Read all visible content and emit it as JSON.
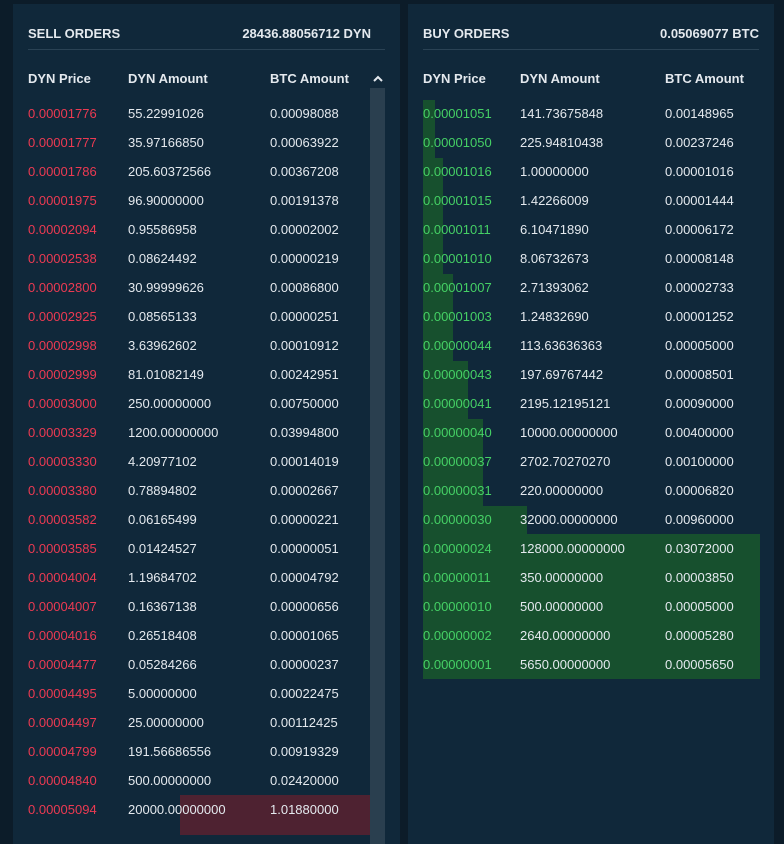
{
  "sell_orders": {
    "title": "SELL ORDERS",
    "total": "28436.88056712 DYN",
    "columns": [
      "DYN Price",
      "DYN Amount",
      "BTC Amount"
    ],
    "rows": [
      [
        "0.00001776",
        "55.22991026",
        "0.00098088"
      ],
      [
        "0.00001777",
        "35.97166850",
        "0.00063922"
      ],
      [
        "0.00001786",
        "205.60372566",
        "0.00367208"
      ],
      [
        "0.00001975",
        "96.90000000",
        "0.00191378"
      ],
      [
        "0.00002094",
        "0.95586958",
        "0.00002002"
      ],
      [
        "0.00002538",
        "0.08624492",
        "0.00000219"
      ],
      [
        "0.00002800",
        "30.99999626",
        "0.00086800"
      ],
      [
        "0.00002925",
        "0.08565133",
        "0.00000251"
      ],
      [
        "0.00002998",
        "3.63962602",
        "0.00010912"
      ],
      [
        "0.00002999",
        "81.01082149",
        "0.00242951"
      ],
      [
        "0.00003000",
        "250.00000000",
        "0.00750000"
      ],
      [
        "0.00003329",
        "1200.00000000",
        "0.03994800"
      ],
      [
        "0.00003330",
        "4.20977102",
        "0.00014019"
      ],
      [
        "0.00003380",
        "0.78894802",
        "0.00002667"
      ],
      [
        "0.00003582",
        "0.06165499",
        "0.00000221"
      ],
      [
        "0.00003585",
        "0.01424527",
        "0.00000051"
      ],
      [
        "0.00004004",
        "1.19684702",
        "0.00004792"
      ],
      [
        "0.00004007",
        "0.16367138",
        "0.00000656"
      ],
      [
        "0.00004016",
        "0.26518408",
        "0.00001065"
      ],
      [
        "0.00004477",
        "0.05284266",
        "0.00000237"
      ],
      [
        "0.00004495",
        "5.00000000",
        "0.00022475"
      ],
      [
        "0.00004497",
        "25.00000000",
        "0.00112425"
      ],
      [
        "0.00004799",
        "191.56686556",
        "0.00919329"
      ],
      [
        "0.00004840",
        "500.00000000",
        "0.02420000"
      ],
      [
        "0.00005094",
        "20000.00000000",
        "1.01880000"
      ]
    ]
  },
  "buy_orders": {
    "title": "BUY ORDERS",
    "total": "0.05069077 BTC",
    "columns": [
      "DYN Price",
      "DYN Amount",
      "BTC Amount"
    ],
    "rows": [
      [
        "0.00001051",
        "141.73675848",
        "0.00148965"
      ],
      [
        "0.00001050",
        "225.94810438",
        "0.00237246"
      ],
      [
        "0.00001016",
        "1.00000000",
        "0.00001016"
      ],
      [
        "0.00001015",
        "1.42266009",
        "0.00001444"
      ],
      [
        "0.00001011",
        "6.10471890",
        "0.00006172"
      ],
      [
        "0.00001010",
        "8.06732673",
        "0.00008148"
      ],
      [
        "0.00001007",
        "2.71393062",
        "0.00002733"
      ],
      [
        "0.00001003",
        "1.24832690",
        "0.00001252"
      ],
      [
        "0.00000044",
        "113.63636363",
        "0.00005000"
      ],
      [
        "0.00000043",
        "197.69767442",
        "0.00008501"
      ],
      [
        "0.00000041",
        "2195.12195121",
        "0.00090000"
      ],
      [
        "0.00000040",
        "10000.00000000",
        "0.00400000"
      ],
      [
        "0.00000037",
        "2702.70270270",
        "0.00100000"
      ],
      [
        "0.00000031",
        "220.00000000",
        "0.00006820"
      ],
      [
        "0.00000030",
        "32000.00000000",
        "0.00960000"
      ],
      [
        "0.00000024",
        "128000.00000000",
        "0.03072000"
      ],
      [
        "0.00000011",
        "350.00000000",
        "0.00003850"
      ],
      [
        "0.00000010",
        "500.00000000",
        "0.00005000"
      ],
      [
        "0.00000002",
        "2640.00000000",
        "0.00005280"
      ],
      [
        "0.00000001",
        "5650.00000000",
        "0.00005650"
      ]
    ]
  }
}
